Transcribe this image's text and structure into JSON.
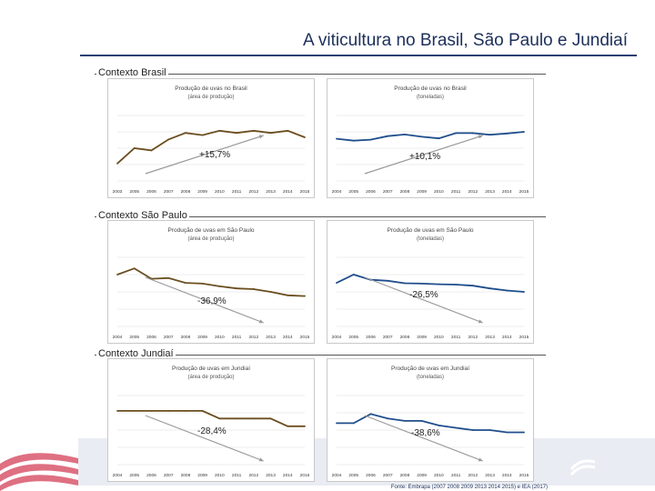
{
  "page": {
    "title": "A viticultura no Brasil, São Paulo e Jundiaí",
    "footer": "Fonte: Embrapa (2007 2008 2009 2013 2014 2015) e IEA (2017)",
    "colors": {
      "area": "#6b4e1f",
      "tonnes": "#1f4e8c",
      "trend": "#9a9a9a",
      "title": "#1c2f5a"
    }
  },
  "sections": [
    {
      "label": "Contexto Brasil"
    },
    {
      "label": "Contexto São Paulo"
    },
    {
      "label": "Contexto Jundiaí"
    }
  ],
  "chart_data": [
    {
      "type": "line",
      "section": "Contexto Brasil",
      "title": "Produção de uvas no Brasil",
      "subtitle": "(área de produção)",
      "categories": [
        "2003",
        "2005",
        "2006",
        "2007",
        "2008",
        "2009",
        "2010",
        "2011",
        "2012",
        "2013",
        "2014",
        "2015"
      ],
      "series": [
        {
          "name": "área de produção",
          "values": [
            68,
            75,
            74,
            79,
            82,
            81,
            83,
            82,
            83,
            82,
            83,
            80
          ]
        }
      ],
      "ylim": [
        60,
        90
      ],
      "annotation": "+15,7%"
    },
    {
      "type": "line",
      "section": "Contexto Brasil",
      "title": "Produção de uvas no Brasil",
      "subtitle": "(toneladas)",
      "categories": [
        "2004",
        "2005",
        "2006",
        "2007",
        "2008",
        "2009",
        "2010",
        "2011",
        "2012",
        "2013",
        "2014",
        "2015"
      ],
      "series": [
        {
          "name": "toneladas",
          "values": [
            1.29,
            1.23,
            1.26,
            1.37,
            1.42,
            1.35,
            1.3,
            1.46,
            1.46,
            1.41,
            1.45,
            1.5
          ]
        }
      ],
      "ylim": [
        0,
        2
      ],
      "annotation": "+10,1%"
    },
    {
      "type": "line",
      "section": "Contexto São Paulo",
      "title": "Produção de uvas em São Paulo",
      "subtitle": "(área de produção)",
      "categories": [
        "2004",
        "2005",
        "2006",
        "2007",
        "2008",
        "2009",
        "2010",
        "2011",
        "2012",
        "2013",
        "2014",
        "2015"
      ],
      "series": [
        {
          "name": "área de produção",
          "values": [
            11.5,
            12.4,
            10.9,
            11.0,
            10.3,
            10.2,
            9.8,
            9.5,
            9.4,
            9.0,
            8.5,
            8.4
          ]
        }
      ],
      "ylim": [
        4,
        14
      ],
      "annotation": "-36,9%"
    },
    {
      "type": "line",
      "section": "Contexto São Paulo",
      "title": "Produção de uvas em São Paulo",
      "subtitle": "(toneladas)",
      "categories": [
        "2004",
        "2005",
        "2006",
        "2007",
        "2008",
        "2009",
        "2010",
        "2011",
        "2012",
        "2013",
        "2014",
        "2015"
      ],
      "series": [
        {
          "name": "toneladas",
          "values": [
            226,
            250,
            235,
            232,
            225,
            224,
            222,
            221,
            218,
            210,
            204,
            200
          ]
        }
      ],
      "ylim": [
        100,
        300
      ],
      "annotation": "-26,5%"
    },
    {
      "type": "line",
      "section": "Contexto Jundiaí",
      "title": "Produção de uvas em Jundiaí",
      "subtitle": "(área de produção)",
      "categories": [
        "2004",
        "2005",
        "2006",
        "2007",
        "2008",
        "2009",
        "2010",
        "2011",
        "2012",
        "2013",
        "2014",
        "2015"
      ],
      "series": [
        {
          "name": "área de produção",
          "values": [
            700,
            700,
            700,
            700,
            700,
            700,
            600,
            600,
            600,
            600,
            500,
            500
          ]
        }
      ],
      "ylim": [
        0,
        900
      ],
      "annotation": "-28,4%"
    },
    {
      "type": "line",
      "section": "Contexto Jundiaí",
      "title": "Produção de uvas em Jundiaí",
      "subtitle": "(toneladas)",
      "categories": [
        "2004",
        "2005",
        "2006",
        "2007",
        "2008",
        "2009",
        "2010",
        "2011",
        "2012",
        "2013",
        "2014",
        "2015"
      ],
      "series": [
        {
          "name": "toneladas",
          "values": [
            18,
            18,
            22,
            20,
            19,
            19,
            17,
            16,
            15,
            15,
            14,
            14
          ]
        }
      ],
      "ylim": [
        0,
        30
      ],
      "annotation": "-38,6%"
    }
  ]
}
